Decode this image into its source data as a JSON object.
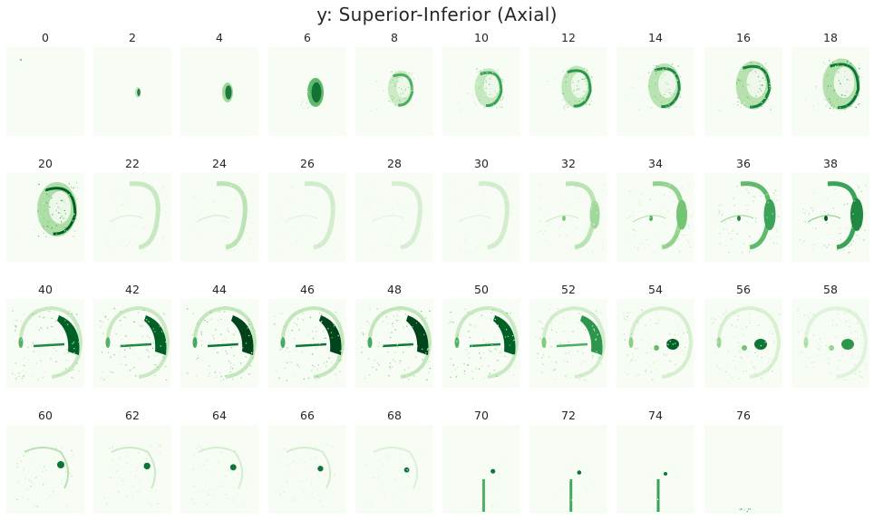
{
  "figure": {
    "title": "y: Superior-Inferior (Axial)",
    "colormap": "Greens",
    "background_color": "#f7fcf5",
    "dark_color": "#00441b"
  },
  "slices": [
    {
      "label": "0",
      "level": 0.02
    },
    {
      "label": "2",
      "level": 0.1
    },
    {
      "label": "4",
      "level": 0.25
    },
    {
      "label": "6",
      "level": 0.45
    },
    {
      "label": "8",
      "level": 0.55
    },
    {
      "label": "10",
      "level": 0.6
    },
    {
      "label": "12",
      "level": 0.65
    },
    {
      "label": "14",
      "level": 0.7
    },
    {
      "label": "16",
      "level": 0.72
    },
    {
      "label": "18",
      "level": 0.75
    },
    {
      "label": "20",
      "level": 0.8
    },
    {
      "label": "22",
      "level": 0.3
    },
    {
      "label": "24",
      "level": 0.35
    },
    {
      "label": "26",
      "level": 0.25
    },
    {
      "label": "28",
      "level": 0.22
    },
    {
      "label": "30",
      "level": 0.25
    },
    {
      "label": "32",
      "level": 0.35
    },
    {
      "label": "34",
      "level": 0.5
    },
    {
      "label": "36",
      "level": 0.65
    },
    {
      "label": "38",
      "level": 0.75
    },
    {
      "label": "40",
      "level": 0.85
    },
    {
      "label": "42",
      "level": 0.85
    },
    {
      "label": "44",
      "level": 0.9
    },
    {
      "label": "46",
      "level": 0.9
    },
    {
      "label": "48",
      "level": 0.9
    },
    {
      "label": "50",
      "level": 0.85
    },
    {
      "label": "52",
      "level": 0.7
    },
    {
      "label": "54",
      "level": 0.65
    },
    {
      "label": "56",
      "level": 0.6
    },
    {
      "label": "58",
      "level": 0.5
    },
    {
      "label": "60",
      "level": 0.45
    },
    {
      "label": "62",
      "level": 0.35
    },
    {
      "label": "64",
      "level": 0.3
    },
    {
      "label": "66",
      "level": 0.3
    },
    {
      "label": "68",
      "level": 0.25
    },
    {
      "label": "70",
      "level": 0.22
    },
    {
      "label": "72",
      "level": 0.18
    },
    {
      "label": "74",
      "level": 0.12
    },
    {
      "label": "76",
      "level": 0.03
    }
  ]
}
